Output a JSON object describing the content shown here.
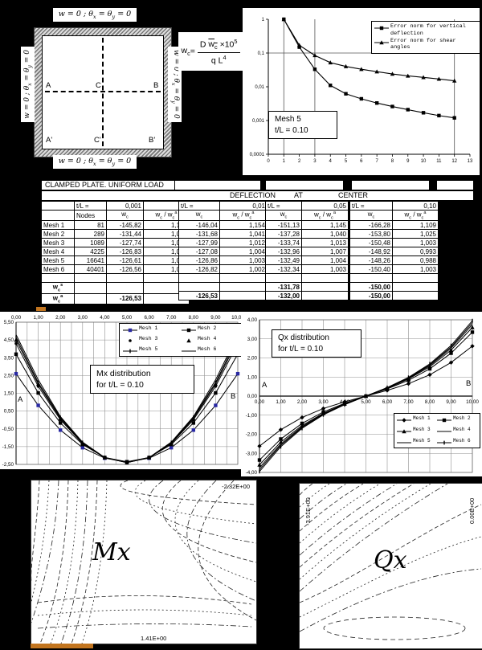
{
  "page": {
    "background": "#000000",
    "paper": "#ffffff",
    "accent_orange": "#c2751f"
  },
  "plate": {
    "bc_top": "w = 0 ; θx = θy = 0",
    "bc_bottom": "w = 0 ; θx = θy = 0",
    "bc_left": "w = 0 ; θx = θy = 0",
    "bc_right": "w = 0 ; θx = θy = 0",
    "corner_labels": {
      "a": "A",
      "c": "C",
      "b": "B",
      "a2": "A'",
      "c2": "C'",
      "b2": "B'"
    }
  },
  "formula": {
    "lhs": "wc",
    "eq": "=",
    "numerator": "D w~c ×10^5",
    "denominator": "q L^4"
  },
  "table": {
    "title": "CLAMPED PLATE. UNIFORM LOAD",
    "subtitle": [
      "DEFLECTION",
      "AT",
      "CENTER"
    ],
    "groups": [
      {
        "label": "t/L =",
        "value": "0,001"
      },
      {
        "label": "t/L =",
        "value": "0,01"
      },
      {
        "label": "t/L =",
        "value": "0,05"
      },
      {
        "label": "t/L =",
        "value": "0,10"
      }
    ],
    "columns": {
      "nodes": "Nodes",
      "wc": "wc",
      "ratio": "wc / wc^a"
    },
    "rows": [
      {
        "label": "Mesh 1",
        "nodes": "81",
        "values": [
          [
            "-145,82",
            "1,152"
          ],
          [
            "-146,04",
            "1,154"
          ],
          [
            "-151,13",
            "1,145"
          ],
          [
            "-166,28",
            "1,109"
          ]
        ]
      },
      {
        "label": "Mesh 2",
        "nodes": "289",
        "values": [
          [
            "-131,44",
            "1,039"
          ],
          [
            "-131,68",
            "1,041"
          ],
          [
            "-137,28",
            "1,040"
          ],
          [
            "-153,80",
            "1,025"
          ]
        ]
      },
      {
        "label": "Mesh 3",
        "nodes": "1089",
        "values": [
          [
            "-127,74",
            "1,010"
          ],
          [
            "-127,99",
            "1,012"
          ],
          [
            "-133,74",
            "1,013"
          ],
          [
            "-150,48",
            "1,003"
          ]
        ]
      },
      {
        "label": "Mesh 4",
        "nodes": "4225",
        "values": [
          [
            "-126,83",
            "1,002"
          ],
          [
            "-127,08",
            "1,004"
          ],
          [
            "-132,96",
            "1,007"
          ],
          [
            "-148,92",
            "0,993"
          ]
        ]
      },
      {
        "label": "Mesh 5",
        "nodes": "16641",
        "values": [
          [
            "-126,61",
            "1,001"
          ],
          [
            "-126,86",
            "1,003"
          ],
          [
            "-132,49",
            "1,004"
          ],
          [
            "-148,26",
            "0,988"
          ]
        ]
      },
      {
        "label": "Mesh 6",
        "nodes": "40401",
        "values": [
          [
            "-126,56",
            "1,000"
          ],
          [
            "-126,82",
            "1,002"
          ],
          [
            "-132,34",
            "1,003"
          ],
          [
            "-150,40",
            "1,003"
          ]
        ]
      }
    ],
    "ref_rows": [
      {
        "label": "wc^s",
        "values": [
          "",
          "",
          "-131,78",
          "-150,00"
        ]
      },
      {
        "label": "wc^a",
        "values": [
          "-126,53",
          "-126,53",
          "-132,00",
          "-150,00"
        ]
      }
    ]
  },
  "chart_data": [
    {
      "id": "convergence",
      "type": "line",
      "y_scale": "log",
      "ylabel": "L2 Norm",
      "ylim": [
        0.0001,
        1
      ],
      "xlim": [
        0,
        13
      ],
      "y_ticks": [
        {
          "v": 1,
          "label": "1"
        },
        {
          "v": 0.1,
          "label": "0,1"
        },
        {
          "v": 0.01,
          "label": "0,01"
        },
        {
          "v": 0.001,
          "label": "0,001"
        },
        {
          "v": 0.0001,
          "label": "0,0001"
        }
      ],
      "x_ticks": [
        "0",
        "1",
        "2",
        "3",
        "4",
        "5",
        "6",
        "7",
        "8",
        "9",
        "10",
        "11",
        "12",
        "13"
      ],
      "grid_x": [
        1,
        3,
        12
      ],
      "grid_y": [
        0.1
      ],
      "annotation": [
        "Mesh 5",
        "t/L = 0.10"
      ],
      "legend_position": "top-right",
      "x": [
        1,
        2,
        3,
        4,
        5,
        6,
        7,
        8,
        9,
        10,
        11,
        12
      ],
      "series": [
        {
          "name": "Error norm for vertical deflection",
          "marker": "square",
          "values": [
            1.0,
            0.15,
            0.033,
            0.011,
            0.0062,
            0.0044,
            0.0033,
            0.0026,
            0.0021,
            0.0017,
            0.0014,
            0.0012
          ]
        },
        {
          "name": "Error norm for shear angles",
          "marker": "triangle",
          "values": [
            1.0,
            0.17,
            0.085,
            0.052,
            0.04,
            0.033,
            0.028,
            0.024,
            0.021,
            0.019,
            0.017,
            0.015
          ]
        }
      ]
    },
    {
      "id": "mx",
      "type": "line",
      "annotation": [
        "Mx distribution",
        "for t/L = 0.10"
      ],
      "xlim": [
        0,
        10
      ],
      "ylim": [
        -2.5,
        5.5
      ],
      "x_ticks": [
        "0,00",
        "1,00",
        "2,00",
        "3,00",
        "4,00",
        "5,00",
        "6,00",
        "7,00",
        "8,00",
        "9,00",
        "10,00"
      ],
      "y_ticks": [
        "5,50",
        "4,50",
        "3,50",
        "2,50",
        "1,50",
        "0,50",
        "-0,50",
        "-1,50",
        "-2,50"
      ],
      "end_labels": [
        "A",
        "B"
      ],
      "grid_step_x": 0.5,
      "grid_step_y": 1.0,
      "legend_position": "top",
      "x": [
        0,
        1,
        2,
        3,
        4,
        5,
        6,
        7,
        8,
        9,
        10
      ],
      "series": [
        {
          "name": "Mesh 1",
          "marker": "square",
          "marker_color": "#2929a3",
          "values": [
            2.6,
            0.82,
            -0.57,
            -1.56,
            -2.15,
            -2.35,
            -2.15,
            -1.56,
            -0.57,
            0.82,
            2.6
          ]
        },
        {
          "name": "Mesh 2",
          "marker": "square",
          "values": [
            3.7,
            1.52,
            -0.17,
            -1.38,
            -2.11,
            -2.35,
            -2.11,
            -1.38,
            -0.17,
            1.52,
            3.7
          ]
        },
        {
          "name": "Mesh 3",
          "marker": "dot",
          "legend_line": false,
          "values": [
            4.3,
            1.89,
            0.01,
            -1.33,
            -2.13,
            -2.4,
            -2.13,
            -1.33,
            0.01,
            1.89,
            4.3
          ]
        },
        {
          "name": "Mesh 4",
          "marker": "triangle",
          "legend_line": false,
          "values": [
            4.5,
            2.02,
            0.08,
            -1.3,
            -2.12,
            -2.4,
            -2.12,
            -1.3,
            0.08,
            2.02,
            4.5
          ]
        },
        {
          "name": "Mesh 5",
          "marker": "tick",
          "values": [
            4.65,
            2.11,
            0.14,
            -1.27,
            -2.12,
            -2.4,
            -2.12,
            -1.27,
            0.14,
            2.11,
            4.65
          ]
        },
        {
          "name": "Mesh 6",
          "marker": "none",
          "values": [
            4.8,
            2.26,
            0.19,
            -1.25,
            -2.11,
            -2.4,
            -2.11,
            -1.25,
            0.19,
            2.26,
            4.8
          ]
        }
      ]
    },
    {
      "id": "qx",
      "type": "line",
      "annotation": [
        "Qx distribution",
        "for t/L = 0.10"
      ],
      "xlim": [
        0,
        10
      ],
      "ylim": [
        -4,
        4
      ],
      "x_ticks": [
        "0,00",
        "1,00",
        "2,00",
        "3,00",
        "4,00",
        "5,00",
        "6,00",
        "7,00",
        "8,00",
        "9,00",
        "10,00"
      ],
      "y_ticks": [
        "4,00",
        "3,00",
        "2,00",
        "1,00",
        "0,00",
        "-1,00",
        "-2,00",
        "-3,00",
        "-4,00"
      ],
      "end_labels": [
        "A",
        "B"
      ],
      "grid_step_x": 1.0,
      "grid_step_y": 1.0,
      "legend_position": "bottom-right",
      "x": [
        0,
        1,
        2,
        3,
        4,
        5,
        6,
        7,
        8,
        9,
        10
      ],
      "series": [
        {
          "name": "Mesh 1",
          "marker": "diamond",
          "values": [
            -2.62,
            -1.76,
            -1.12,
            -0.65,
            -0.3,
            0,
            0.3,
            0.65,
            1.12,
            1.76,
            2.62
          ]
        },
        {
          "name": "Mesh 2",
          "marker": "square",
          "values": [
            -3.35,
            -2.25,
            -1.43,
            -0.83,
            -0.38,
            0,
            0.38,
            0.83,
            1.43,
            2.25,
            3.35
          ]
        },
        {
          "name": "Mesh 3",
          "marker": "triangle",
          "values": [
            -3.6,
            -2.41,
            -1.54,
            -0.9,
            -0.41,
            0,
            0.41,
            0.9,
            1.54,
            2.41,
            3.6
          ]
        },
        {
          "name": "Mesh 4",
          "marker": "none",
          "values": [
            -3.75,
            -2.51,
            -1.6,
            -0.93,
            -0.43,
            0,
            0.43,
            0.93,
            1.6,
            2.51,
            3.75
          ]
        },
        {
          "name": "Mesh 5",
          "marker": "none",
          "values": [
            -3.85,
            -2.58,
            -1.64,
            -0.96,
            -0.44,
            0,
            0.44,
            0.96,
            1.64,
            2.58,
            3.85
          ]
        },
        {
          "name": "Mesh 6",
          "marker": "tick",
          "values": [
            -3.95,
            -2.65,
            -1.69,
            -0.98,
            -0.45,
            0,
            0.45,
            0.98,
            1.69,
            2.65,
            3.95
          ]
        }
      ]
    }
  ],
  "contour_plots": [
    {
      "id": "mx-contour",
      "label": "Mx",
      "value_top_right": "-2.32E+00",
      "value_bottom": "1.41E+00"
    },
    {
      "id": "qx-contour",
      "label": "Qx",
      "value_left": "-3.91E+00",
      "value_right": "0.00E+00"
    }
  ]
}
